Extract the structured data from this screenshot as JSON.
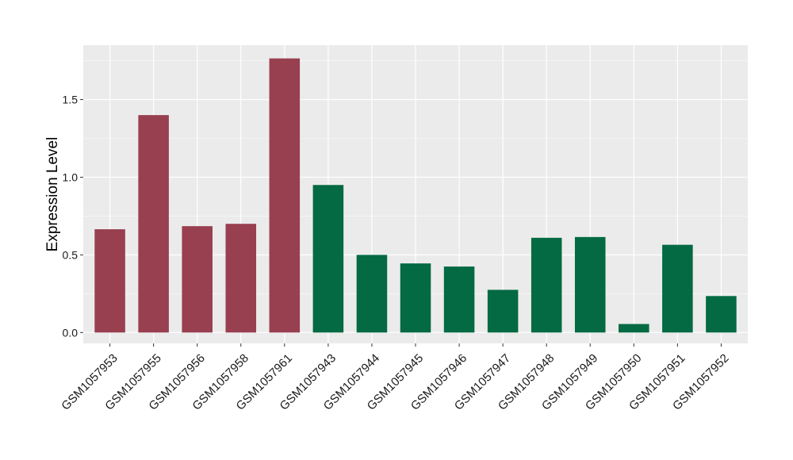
{
  "chart_data": {
    "type": "bar",
    "title": "",
    "xlabel": "",
    "ylabel": "Expression Level",
    "ylim": [
      -0.07,
      1.85
    ],
    "yticks": [
      0.0,
      0.5,
      1.0,
      1.5
    ],
    "ytick_labels": [
      "0.0",
      "0.5",
      "1.0",
      "1.5"
    ],
    "grid": true,
    "legend": "none",
    "colors": {
      "panel_background": "#ebebeb",
      "grid_major": "#ffffff",
      "group_a": "#98404f",
      "group_b": "#036a43"
    },
    "categories": [
      "GSM1057953",
      "GSM1057955",
      "GSM1057956",
      "GSM1057958",
      "GSM1057961",
      "GSM1057943",
      "GSM1057944",
      "GSM1057945",
      "GSM1057946",
      "GSM1057947",
      "GSM1057948",
      "GSM1057949",
      "GSM1057950",
      "GSM1057951",
      "GSM1057952"
    ],
    "values": [
      0.665,
      1.4,
      0.685,
      0.7,
      1.765,
      0.95,
      0.5,
      0.445,
      0.425,
      0.275,
      0.61,
      0.615,
      0.055,
      0.565,
      0.235
    ],
    "bar_groups": [
      "group_a",
      "group_a",
      "group_a",
      "group_a",
      "group_a",
      "group_b",
      "group_b",
      "group_b",
      "group_b",
      "group_b",
      "group_b",
      "group_b",
      "group_b",
      "group_b",
      "group_b"
    ]
  }
}
